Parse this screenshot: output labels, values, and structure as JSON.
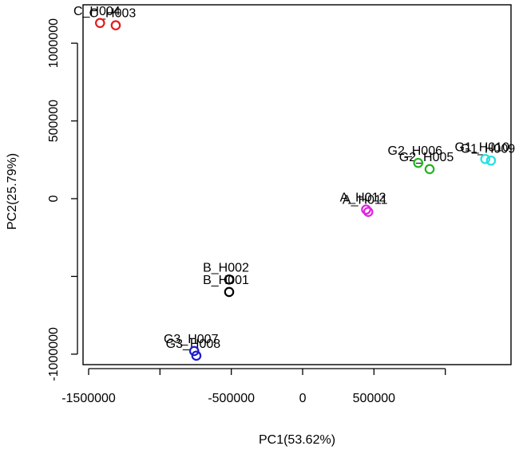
{
  "chart_data": {
    "type": "scatter",
    "title": "",
    "xlabel": "PC1(53.62%)",
    "ylabel": "PC2(25.79%)",
    "xlim": [
      -1500000,
      1500000
    ],
    "ylim": [
      -1000000,
      1100000
    ],
    "grid": false,
    "legend": "none",
    "x_ticks": [
      {
        "value": -1500000,
        "label": "-1500000"
      },
      {
        "value": -500000,
        "label": "-500000"
      },
      {
        "value": 0,
        "label": "0"
      },
      {
        "value": 500000,
        "label": "500000"
      }
    ],
    "x_tick_marks": [
      -1500000,
      -1000000,
      -500000,
      0,
      500000,
      1000000
    ],
    "y_ticks": [
      {
        "value": 1000000,
        "label": "1000000"
      },
      {
        "value": 500000,
        "label": "500000"
      },
      {
        "value": 0,
        "label": "0"
      },
      {
        "value": -1000000,
        "label": "-1000000"
      }
    ],
    "y_tick_marks": [
      -1000000,
      -500000,
      0,
      500000,
      1000000
    ],
    "points": [
      {
        "label": "C_H004",
        "x": -1420000,
        "y": 1130000,
        "color": "#e41a1c"
      },
      {
        "label": "C_H003",
        "x": -1310000,
        "y": 1115000,
        "color": "#e41a1c"
      },
      {
        "label": "G2_H006",
        "x": 810000,
        "y": 230000,
        "color": "#22b422"
      },
      {
        "label": "G2_H005",
        "x": 890000,
        "y": 190000,
        "color": "#22b422"
      },
      {
        "label": "G1_H010",
        "x": 1280000,
        "y": 255000,
        "color": "#22e0e0"
      },
      {
        "label": "G1_H009",
        "x": 1320000,
        "y": 245000,
        "color": "#22e0e0"
      },
      {
        "label": "A_H012",
        "x": 445000,
        "y": -70000,
        "color": "#e020e0"
      },
      {
        "label": "A_H011",
        "x": 460000,
        "y": -85000,
        "color": "#e020e0"
      },
      {
        "label": "B_H002",
        "x": -515000,
        "y": -520000,
        "color": "#000000"
      },
      {
        "label": "B_H001",
        "x": -515000,
        "y": -600000,
        "color": "#000000"
      },
      {
        "label": "G3_H007",
        "x": -760000,
        "y": -980000,
        "color": "#1c1ccc"
      },
      {
        "label": "G3_H008",
        "x": -745000,
        "y": -1010000,
        "color": "#1c1ccc"
      }
    ]
  }
}
